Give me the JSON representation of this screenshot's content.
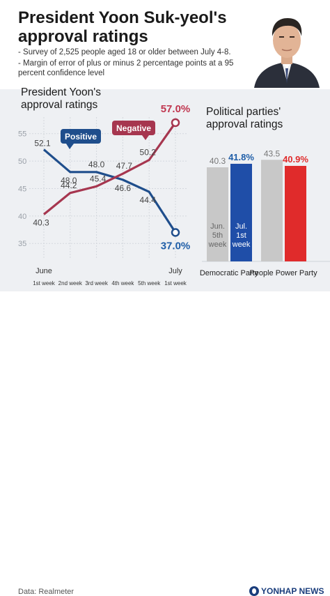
{
  "header": {
    "title": "President Yoon Suk-yeol's approval ratings",
    "notes": [
      "- Survey of 2,525 people aged 18 or older between July 4-8.",
      "- Margin of error of plus or minus 2 percentage points at a 95 percent confidence level"
    ]
  },
  "left_title": "President Yoon's approval ratings",
  "right_title": "Political parties' approval ratings",
  "footer": {
    "source": "Data: Realmeter",
    "logo": "YONHAP NEWS"
  },
  "colors": {
    "positive": "#1f4e8c",
    "negative": "#a6364f",
    "gray_bar": "#c8c8c8",
    "blue_bar": "#1f4ea8",
    "red_bar": "#e02b2b",
    "accent_blue": "#1f5ea8",
    "accent_red": "#c0364f"
  },
  "chart_data": [
    {
      "type": "line",
      "categories": [
        "1st week",
        "2nd week",
        "3rd week",
        "4th week",
        "5th week",
        "1st week"
      ],
      "month_labels": [
        "June",
        "July"
      ],
      "series": [
        {
          "name": "Positive",
          "values": [
            52.1,
            48.0,
            48.0,
            46.6,
            44.4,
            37.0
          ],
          "labels": [
            "52.1",
            "48.0",
            "48.0",
            "46.6",
            "44.4",
            "37.0%"
          ]
        },
        {
          "name": "Negative",
          "values": [
            40.3,
            44.2,
            45.4,
            47.7,
            50.2,
            57.0
          ],
          "labels": [
            "40.3",
            "44.2",
            "45.4",
            "47.7",
            "50.2",
            "57.0%"
          ]
        }
      ],
      "yticks": [
        35,
        40,
        45,
        50,
        55
      ],
      "ylim": [
        33,
        57.5
      ],
      "grid": true
    },
    {
      "type": "bar",
      "categories": [
        "Democratic Party",
        "People Power Party"
      ],
      "series": [
        {
          "name": "Jun. 5th week",
          "values": [
            40.3,
            43.5
          ],
          "labels": [
            "40.3",
            "43.5"
          ]
        },
        {
          "name": "Jul. 1st week",
          "values": [
            41.8,
            40.9
          ],
          "labels": [
            "41.8%",
            "40.9%"
          ]
        }
      ],
      "bar_text": [
        "Jun. 5th week",
        "Jul. 1st week"
      ],
      "ylim": [
        0,
        45
      ]
    }
  ]
}
